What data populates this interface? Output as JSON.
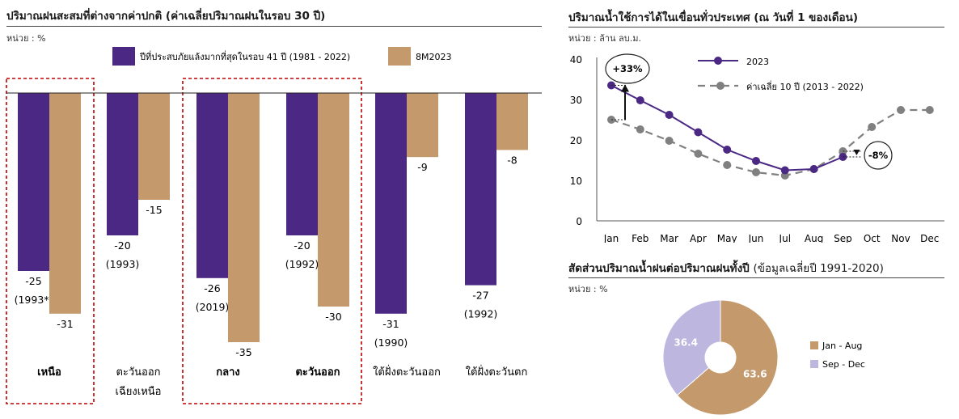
{
  "colors": {
    "purple": "#4b2883",
    "tan": "#c49a6c",
    "gray": "#808080",
    "pie_tan": "#c49a6c",
    "pie_lilac": "#bdb7e0",
    "red_dash": "#c00000"
  },
  "left": {
    "title": "ปริมาณฝนสะสมที่ต่างจากค่าปกติ (ค่าเฉลี่ยปริมาณฝนในรอบ 30 ปี)",
    "unit": "หน่วย : %",
    "chart_data": {
      "type": "bar",
      "categories": [
        [
          "เหนือ"
        ],
        [
          "ตะวันออก",
          "เฉียงเหนือ"
        ],
        [
          "กลาง"
        ],
        [
          "ตะวันออก"
        ],
        [
          "ใต้ฝั่งตะวันออก"
        ],
        [
          "ใต้ฝั่งตะวันตก"
        ]
      ],
      "bold_categories": [
        true,
        false,
        true,
        true,
        false,
        false
      ],
      "series": [
        {
          "name": "ปีที่ประสบภัยแล้งมากที่สุดในรอบ 41 ปี (1981 - 2022)",
          "values": [
            -25,
            -20,
            -26,
            -20,
            -31,
            -27
          ],
          "year_labels": [
            "(1993*)",
            "(1993)",
            "(2019)",
            "(1992)",
            "(1990)",
            "(1992)"
          ]
        },
        {
          "name": "8M2023",
          "values": [
            -31,
            -15,
            -35,
            -30,
            -9,
            -8
          ]
        }
      ],
      "ylim": [
        -40,
        0
      ],
      "highlighted_groups": [
        [
          0
        ],
        [
          2,
          3
        ]
      ]
    }
  },
  "right_top": {
    "title": "ปริมาณน้ำใช้การได้ในเขื่อนทั่วประเทศ (ณ วันที่ 1 ของเดือน)",
    "unit": "หน่วย : ล้าน ลบ.ม.",
    "chart_data": {
      "type": "line",
      "x": [
        "Jan",
        "Feb",
        "Mar",
        "Apr",
        "May",
        "Jun",
        "Jul",
        "Aug",
        "Sep",
        "Oct",
        "Nov",
        "Dec"
      ],
      "yticks": [
        0,
        10,
        20,
        30,
        40
      ],
      "ylim": [
        0,
        40
      ],
      "series": [
        {
          "name": "2023",
          "values": [
            33.5,
            29.8,
            26.2,
            21.9,
            17.6,
            14.8,
            12.5,
            12.8,
            15.8,
            null,
            null,
            null
          ]
        },
        {
          "name": "ค่าเฉลี่ย 10 ปี (2013 - 2022)",
          "values": [
            25.0,
            22.6,
            19.8,
            16.6,
            13.8,
            12.0,
            11.2,
            12.8,
            17.2,
            23.2,
            27.4,
            27.4
          ]
        }
      ],
      "annotations": [
        "+33%",
        "-8%"
      ]
    }
  },
  "right_bottom": {
    "title_bold": "สัดส่วนปริมาณน้ำฝนต่อปริมาณฝนทั้งปี",
    "title_plain": "(ข้อมูลเฉลี่ยปี 1991-2020)",
    "unit": "หน่วย : %",
    "chart_data": {
      "type": "pie",
      "labels": [
        "Jan - Aug",
        "Sep - Dec"
      ],
      "values": [
        63.6,
        36.4
      ]
    }
  }
}
